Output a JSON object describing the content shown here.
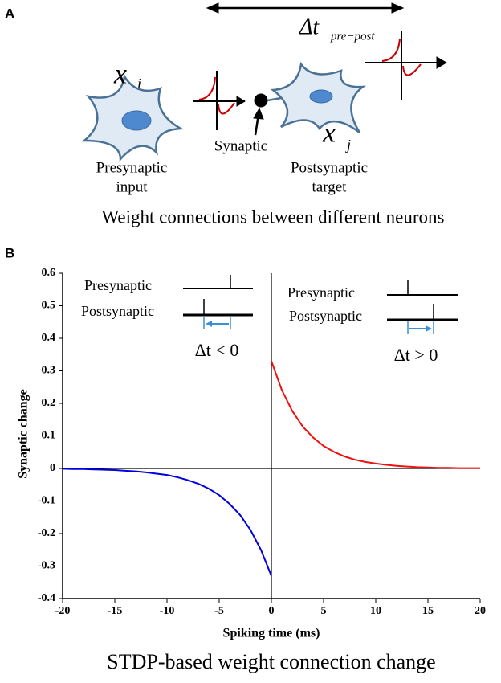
{
  "panel_a": {
    "label": "A",
    "delta_t": "Δt",
    "delta_t_sub": "pre−post",
    "x_i": "x",
    "x_i_sub": "i",
    "x_j": "x",
    "x_j_sub": "j",
    "presynaptic": [
      "Presynaptic",
      "input"
    ],
    "synaptic": "Synaptic",
    "postsynaptic": [
      "Postsynaptic",
      "target"
    ],
    "caption": "Weight connections between different neurons"
  },
  "chart_data": {
    "type": "line",
    "panel_label": "B",
    "caption": "STDP-based weight connection change",
    "xlabel": "Spiking time (ms)",
    "ylabel": "Synaptic change",
    "xlim": [
      -20,
      20
    ],
    "ylim": [
      -0.4,
      0.6
    ],
    "xticks": [
      -20,
      -15,
      -10,
      -5,
      0,
      5,
      10,
      15,
      20
    ],
    "yticks": [
      -0.4,
      -0.3,
      -0.2,
      -0.1,
      0,
      0.1,
      0.2,
      0.3,
      0.4,
      0.5,
      0.6
    ],
    "x": [
      -20,
      -19,
      -18,
      -17,
      -16,
      -15,
      -14,
      -13,
      -12,
      -11,
      -10,
      -9,
      -8,
      -7,
      -6,
      -5,
      -4,
      -3,
      -2,
      -1,
      0,
      1,
      2,
      3,
      4,
      5,
      6,
      7,
      8,
      9,
      10,
      11,
      12,
      13,
      14,
      15,
      16,
      17,
      18,
      19,
      20
    ],
    "series": [
      {
        "color": "#0000dd",
        "values": [
          -0.001,
          -0.002,
          -0.002,
          -0.003,
          -0.004,
          -0.005,
          -0.007,
          -0.009,
          -0.012,
          -0.016,
          -0.02,
          -0.027,
          -0.036,
          -0.047,
          -0.062,
          -0.082,
          -0.109,
          -0.143,
          -0.189,
          -0.25,
          -0.33,
          null,
          null,
          null,
          null,
          null,
          null,
          null,
          null,
          null,
          null,
          null,
          null,
          null,
          null,
          null,
          null,
          null,
          null,
          null,
          null
        ]
      },
      {
        "color": "#ee1111",
        "values": [
          null,
          null,
          null,
          null,
          null,
          null,
          null,
          null,
          null,
          null,
          null,
          null,
          null,
          null,
          null,
          null,
          null,
          null,
          null,
          null,
          0.33,
          0.241,
          0.177,
          0.129,
          0.095,
          0.069,
          0.051,
          0.037,
          0.027,
          0.02,
          0.015,
          0.011,
          0.008,
          0.006,
          0.004,
          0.003,
          0.002,
          0.002,
          0.001,
          0.001,
          0.001
        ]
      }
    ],
    "annotations": [
      {
        "pre": "Presynaptic",
        "post": "Postsynaptic",
        "delta": "Δt < 0"
      },
      {
        "pre": "Presynaptic",
        "post": "Postsynaptic",
        "delta": "Δt > 0"
      }
    ]
  }
}
